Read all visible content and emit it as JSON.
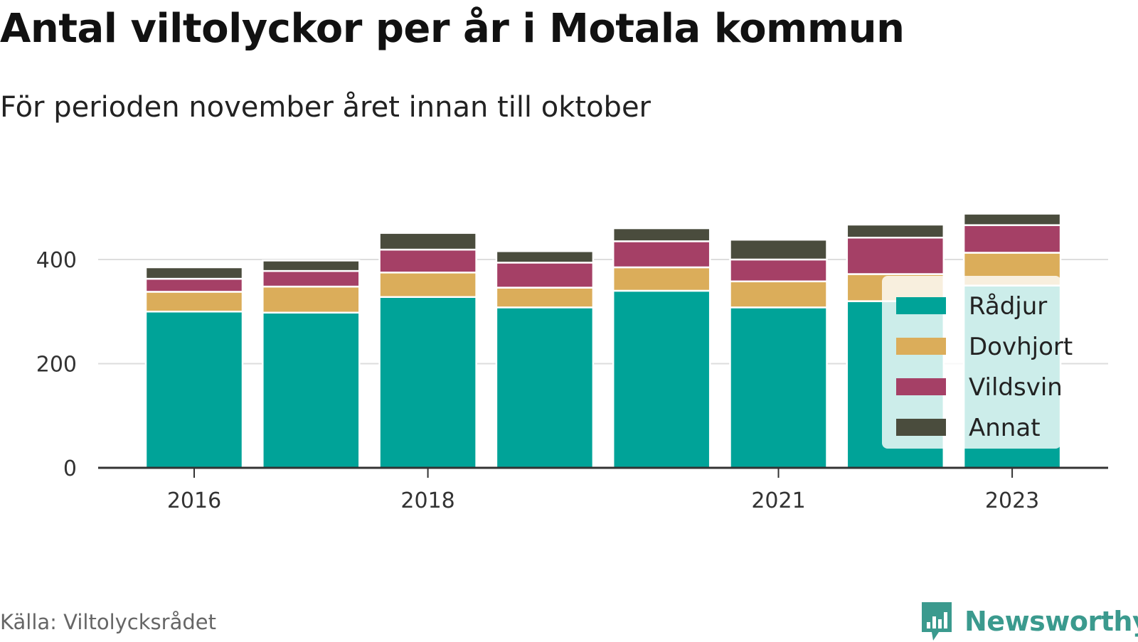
{
  "title": "Antal viltolyckor per år i Motala kommun",
  "subtitle": "För perioden november året innan till oktober",
  "source": "Källa: Viltolycksrådet",
  "brand": {
    "name": "Newsworthy",
    "icon": "newsworthy-logo-icon",
    "color": "#3b9a8e"
  },
  "chart_data": {
    "type": "bar",
    "stacked": true,
    "categories": [
      "2016",
      "2017",
      "2018",
      "2019",
      "2020",
      "2021",
      "2022",
      "2023"
    ],
    "x_tick_labels": [
      "2016",
      "",
      "2018",
      "",
      "",
      "2021",
      "",
      "2023"
    ],
    "series": [
      {
        "name": "Rådjur",
        "color": "#00a398",
        "values": [
          300,
          298,
          328,
          308,
          340,
          308,
          320,
          350
        ]
      },
      {
        "name": "Dovhjort",
        "color": "#dbad5a",
        "values": [
          38,
          50,
          47,
          38,
          45,
          50,
          52,
          63
        ]
      },
      {
        "name": "Vildsvin",
        "color": "#a54066",
        "values": [
          25,
          30,
          44,
          48,
          50,
          42,
          70,
          53
        ]
      },
      {
        "name": "Annat",
        "color": "#4a4c3d",
        "values": [
          22,
          20,
          32,
          22,
          25,
          38,
          25,
          22
        ]
      }
    ],
    "ylim": [
      0,
      500
    ],
    "y_ticks": [
      0,
      200,
      400
    ],
    "grid": true,
    "legend_position": "bottom-right",
    "xlabel": "",
    "ylabel": ""
  }
}
